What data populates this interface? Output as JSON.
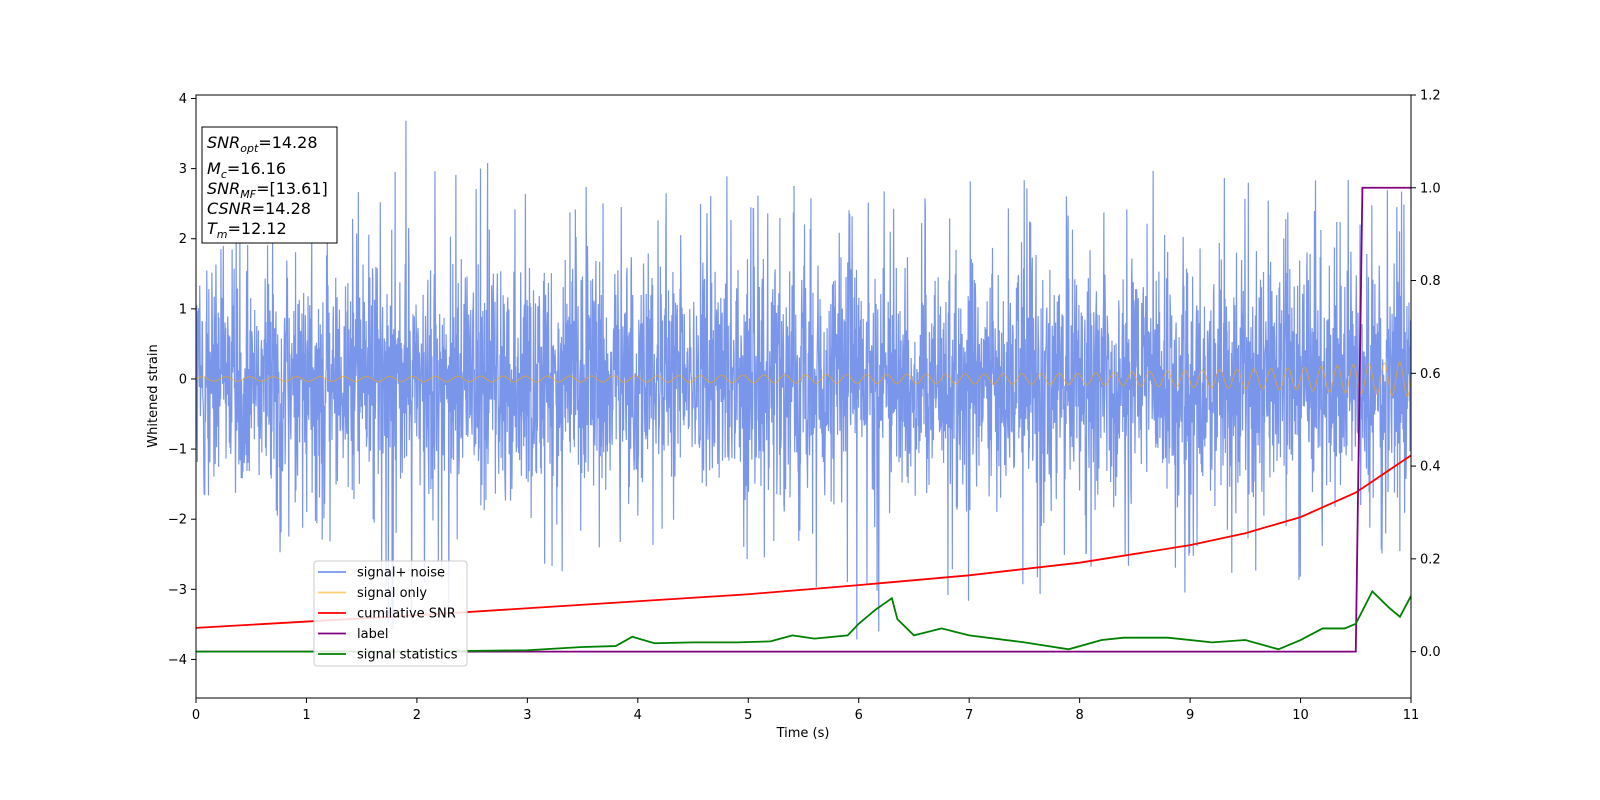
{
  "chart_data": {
    "type": "line",
    "xlabel": "Time (s)",
    "ylabel": "Whitened strain",
    "xlim": [
      0,
      11
    ],
    "ylim": [
      -4.55,
      4.05
    ],
    "ylim_right": [
      -0.1,
      1.2
    ],
    "x_ticks": [
      0,
      1,
      2,
      3,
      4,
      5,
      6,
      7,
      8,
      9,
      10,
      11
    ],
    "y_ticks": [
      -4,
      -3,
      -2,
      -1,
      0,
      1,
      2,
      3,
      4
    ],
    "y_right_ticks": [
      0.0,
      0.2,
      0.4,
      0.6,
      0.8,
      1.0,
      1.2
    ],
    "grid": false,
    "legend_position": "lower-left",
    "info_box": [
      {
        "base": "SNR",
        "sub": "opt",
        "value": "=14.28"
      },
      {
        "base": "M",
        "sub": "c",
        "value": "=16.16"
      },
      {
        "base": "SNR",
        "sub": "MF",
        "value": "=[13.61]"
      },
      {
        "base": "CSNR",
        "sub": "",
        "value": "=14.28"
      },
      {
        "base": "T",
        "sub": "m",
        "value": "=12.12"
      }
    ],
    "series": [
      {
        "name": "signal+ noise",
        "axis": "left",
        "color": "#4169e1",
        "kind": "noise",
        "envelope_hi": [
          [
            0,
            1.4
          ],
          [
            0.5,
            2.4
          ],
          [
            1,
            2.2
          ],
          [
            1.9,
            3.7
          ],
          [
            3,
            2.9
          ],
          [
            4,
            2.6
          ],
          [
            5,
            3.0
          ],
          [
            6,
            2.7
          ],
          [
            7,
            2.9
          ],
          [
            8,
            2.9
          ],
          [
            9,
            3.5
          ],
          [
            10,
            2.8
          ],
          [
            10.8,
            3.1
          ],
          [
            11,
            3.3
          ]
        ],
        "envelope_lo": [
          [
            0,
            -1.5
          ],
          [
            0.5,
            -2.5
          ],
          [
            1,
            -2.5
          ],
          [
            1.8,
            -3.7
          ],
          [
            3,
            -2.9
          ],
          [
            4,
            -2.4
          ],
          [
            5,
            -2.7
          ],
          [
            5.95,
            -3.9
          ],
          [
            7,
            -3.3
          ],
          [
            8,
            -3.2
          ],
          [
            9,
            -3.1
          ],
          [
            10,
            -2.9
          ],
          [
            11,
            -2.6
          ]
        ]
      },
      {
        "name": "signal only",
        "axis": "left",
        "color": "#ffa500",
        "kind": "chirp",
        "amplitude": [
          [
            0,
            0.03
          ],
          [
            4,
            0.045
          ],
          [
            8,
            0.08
          ],
          [
            10,
            0.16
          ],
          [
            11,
            0.25
          ]
        ],
        "frequency": [
          [
            0,
            4.6
          ],
          [
            5,
            5.2
          ],
          [
            10,
            6.6
          ],
          [
            11,
            7.4
          ]
        ]
      },
      {
        "name": "cumilative SNR",
        "axis": "left",
        "color": "#ff0000",
        "kind": "line",
        "x": [
          0,
          1,
          2,
          3,
          4,
          5,
          6,
          7,
          8,
          9,
          9.5,
          10,
          10.5,
          11
        ],
        "y": [
          -3.55,
          -3.46,
          -3.37,
          -3.27,
          -3.17,
          -3.07,
          -2.94,
          -2.8,
          -2.62,
          -2.37,
          -2.2,
          -1.97,
          -1.62,
          -1.09
        ]
      },
      {
        "name": "label",
        "axis": "right",
        "color": "#800080",
        "kind": "line",
        "x": [
          0,
          10.5,
          10.56,
          11
        ],
        "y": [
          0.0,
          0.0,
          1.0,
          1.0
        ]
      },
      {
        "name": "signal statistics",
        "axis": "right",
        "color": "#008000",
        "kind": "line",
        "x": [
          0,
          1,
          2,
          3,
          3.5,
          3.8,
          3.95,
          4.15,
          4.5,
          4.9,
          5.2,
          5.4,
          5.6,
          5.9,
          6.0,
          6.15,
          6.3,
          6.35,
          6.5,
          6.75,
          7.0,
          7.5,
          7.9,
          8.2,
          8.4,
          8.8,
          9.2,
          9.5,
          9.8,
          10.0,
          10.2,
          10.4,
          10.5,
          10.65,
          10.8,
          10.9,
          11.0
        ],
        "y": [
          0.0,
          0.0,
          0.0,
          0.003,
          0.01,
          0.012,
          0.032,
          0.018,
          0.02,
          0.02,
          0.022,
          0.035,
          0.028,
          0.035,
          0.06,
          0.09,
          0.115,
          0.07,
          0.035,
          0.05,
          0.035,
          0.02,
          0.005,
          0.025,
          0.03,
          0.03,
          0.02,
          0.025,
          0.005,
          0.025,
          0.05,
          0.05,
          0.06,
          0.13,
          0.095,
          0.075,
          0.12
        ]
      }
    ]
  },
  "legend": {
    "items": [
      "signal+ noise",
      "signal only",
      "cumilative SNR",
      "label",
      "signal statistics"
    ]
  }
}
